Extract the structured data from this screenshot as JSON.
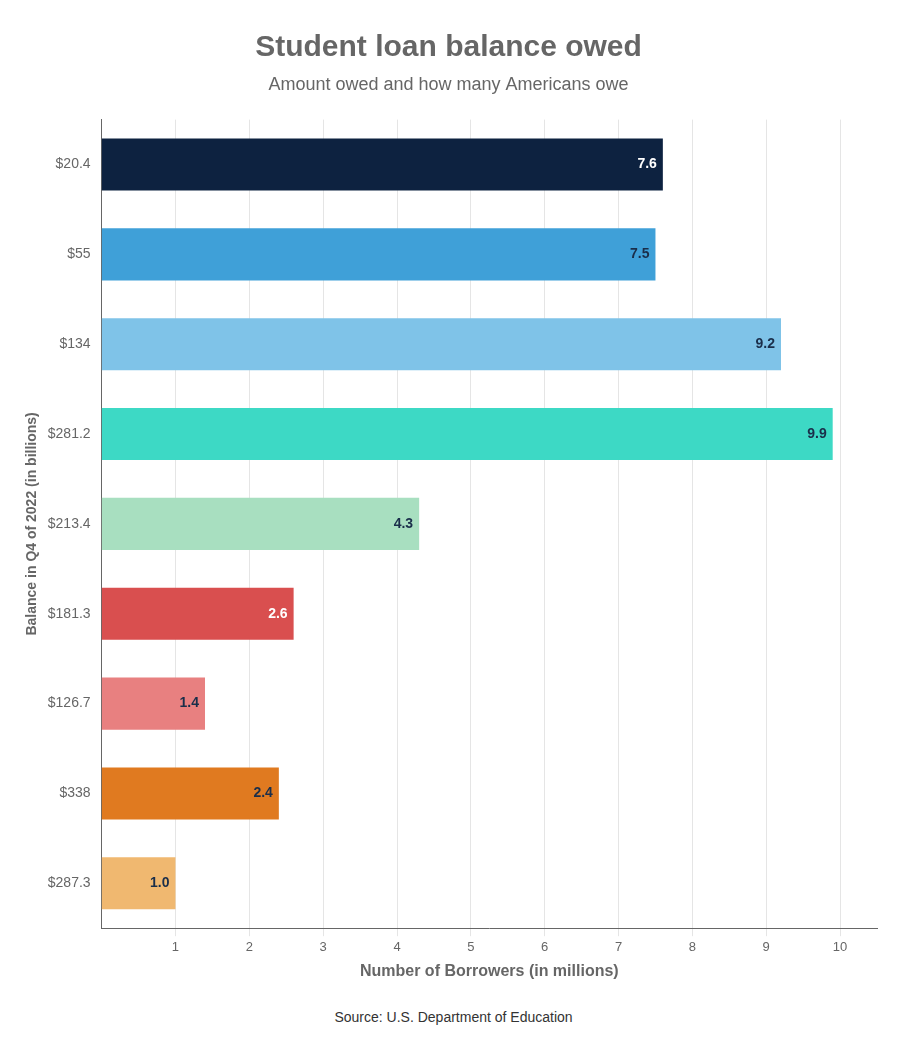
{
  "chart_data": {
    "type": "bar",
    "orientation": "horizontal",
    "title": "Student loan balance owed",
    "subtitle": "Amount owed and how many Americans owe",
    "ylabel": "Balance in Q4 of 2022 (in billions)",
    "xlabel": "Number of Borrowers (in millions)",
    "annotations": [
      "Source: U.S. Department of Education"
    ],
    "categories": [
      "$20.4",
      "$55",
      "$134",
      "$281.2",
      "$213.4",
      "$181.3",
      "$126.7",
      "$338",
      "$287.3"
    ],
    "values": [
      7.6,
      7.5,
      9.2,
      9.9,
      4.3,
      2.6,
      1.4,
      2.4,
      1.0
    ],
    "value_labels": [
      "7.6",
      "7.5",
      "9.2",
      "9.9",
      "4.3",
      "2.6",
      "1.4",
      "2.4",
      "1.0"
    ],
    "colors": [
      "#0d2240",
      "#3fa0d8",
      "#7fc3e8",
      "#3dd9c5",
      "#a8dfc0",
      "#d94f4f",
      "#e88080",
      "#e07a20",
      "#f0b870"
    ],
    "data_labels": true,
    "xlim": [
      0,
      10.5
    ],
    "xticks": [
      1,
      2,
      3,
      4,
      5,
      6,
      7,
      8,
      9,
      10
    ],
    "grid": true
  }
}
